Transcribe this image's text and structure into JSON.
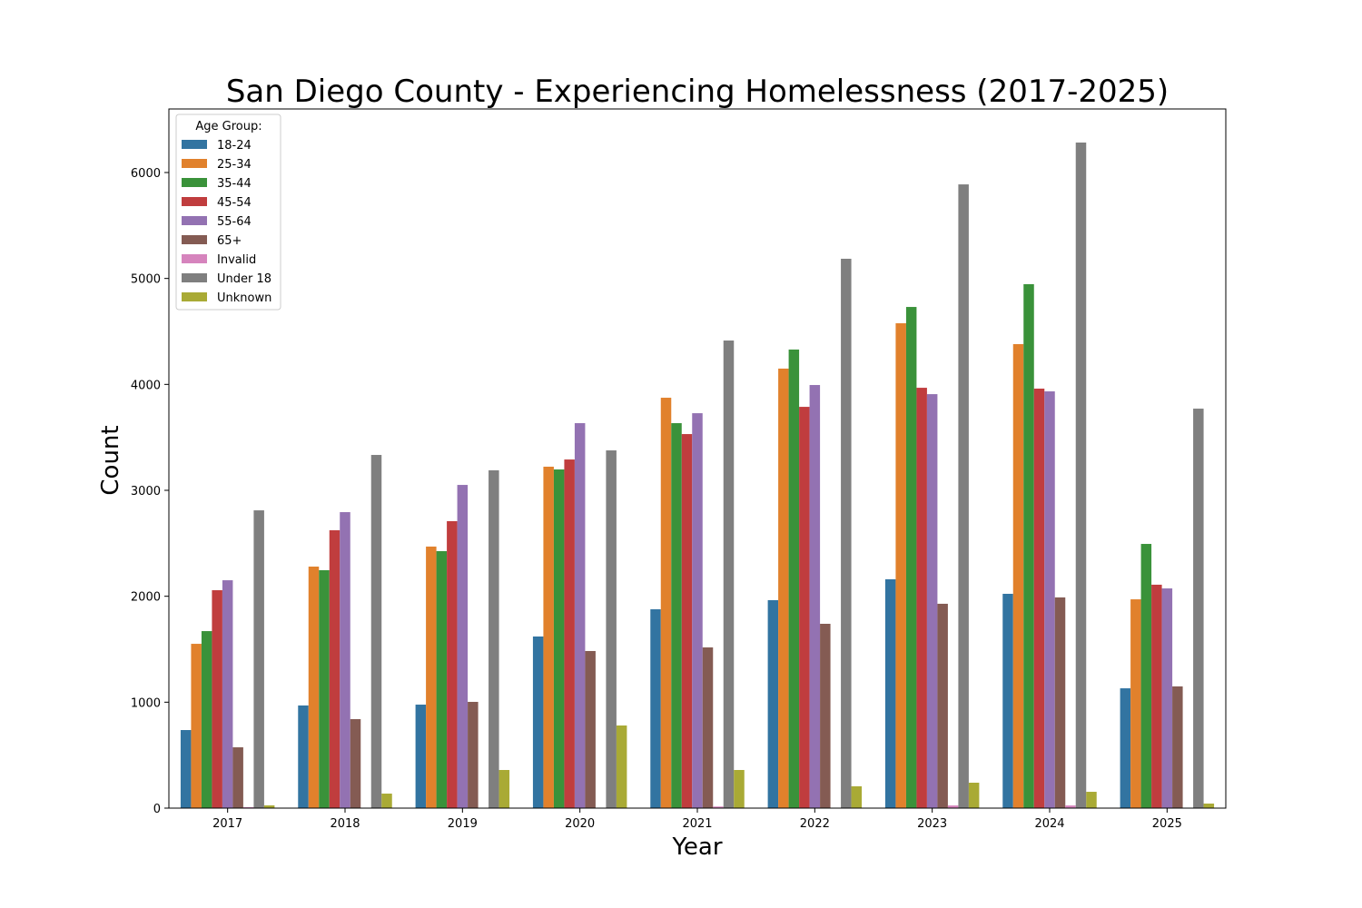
{
  "chart_data": {
    "type": "bar",
    "title": "San Diego County - Experiencing Homelessness (2017-2025)",
    "xlabel": "Year",
    "ylabel": "Count",
    "ylim": [
      0,
      6600
    ],
    "yticks": [
      0,
      1000,
      2000,
      3000,
      4000,
      5000,
      6000
    ],
    "grid": false,
    "legend": {
      "title": "Age Group:",
      "placement": "top-left"
    },
    "categories": [
      "2017",
      "2018",
      "2019",
      "2020",
      "2021",
      "2022",
      "2023",
      "2024",
      "2025"
    ],
    "series": [
      {
        "name": "18-24",
        "color": "#3274a1",
        "values": [
          737,
          969,
          977,
          1620,
          1877,
          1963,
          2160,
          2023,
          1131
        ]
      },
      {
        "name": "25-34",
        "color": "#e1812c",
        "values": [
          1551,
          2280,
          2469,
          3223,
          3874,
          4149,
          4577,
          4380,
          1971
        ]
      },
      {
        "name": "35-44",
        "color": "#3a923a",
        "values": [
          1671,
          2246,
          2426,
          3197,
          3634,
          4329,
          4731,
          4946,
          2494
        ]
      },
      {
        "name": "45-54",
        "color": "#c03d3e",
        "values": [
          2057,
          2623,
          2709,
          3291,
          3531,
          3788,
          3968,
          3960,
          2109
        ]
      },
      {
        "name": "55-64",
        "color": "#9372b2",
        "values": [
          2151,
          2794,
          3051,
          3634,
          3728,
          3994,
          3908,
          3934,
          2074
        ]
      },
      {
        "name": "65+",
        "color": "#845b53",
        "values": [
          574,
          840,
          1003,
          1483,
          1517,
          1740,
          1929,
          1989,
          1149
        ]
      },
      {
        "name": "Invalid",
        "color": "#d684bd",
        "values": [
          9,
          0,
          0,
          0,
          15,
          0,
          25,
          25,
          0
        ]
      },
      {
        "name": "Under 18",
        "color": "#7f7f7f",
        "values": [
          2811,
          3334,
          3189,
          3377,
          4414,
          5186,
          5888,
          6283,
          3771
        ]
      },
      {
        "name": "Unknown",
        "color": "#a9aa35",
        "values": [
          26,
          137,
          360,
          780,
          360,
          206,
          240,
          154,
          43
        ]
      }
    ]
  }
}
